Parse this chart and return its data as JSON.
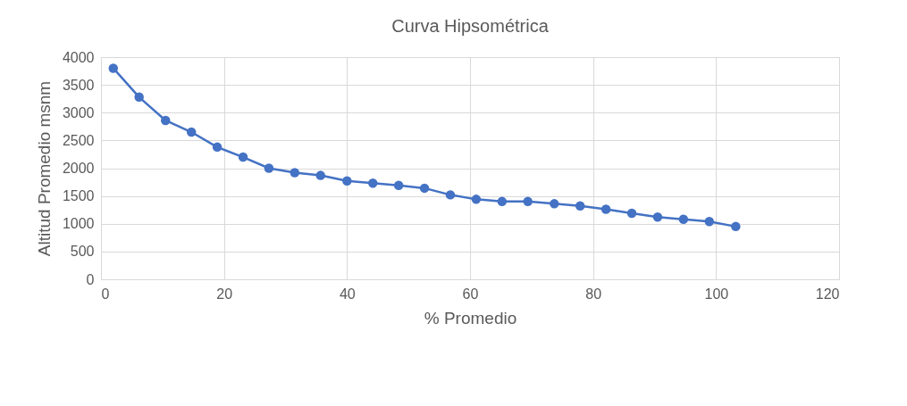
{
  "chart_data": {
    "type": "line",
    "title": "Curva Hipsométrica",
    "xlabel": "% Promedio",
    "ylabel": "Altitud Promedio  msnm",
    "x": [
      2.0,
      6.2,
      10.5,
      14.7,
      18.9,
      23.1,
      27.3,
      31.5,
      35.7,
      40.0,
      44.2,
      48.4,
      52.6,
      56.8,
      61.0,
      65.2,
      69.4,
      73.7,
      77.9,
      82.1,
      86.3,
      90.5,
      94.7,
      98.9,
      103.2
    ],
    "series": [
      {
        "color": "#4472c4",
        "values": [
          3800,
          3280,
          2860,
          2650,
          2380,
          2200,
          2000,
          1920,
          1870,
          1770,
          1730,
          1690,
          1640,
          1520,
          1440,
          1400,
          1400,
          1360,
          1320,
          1260,
          1190,
          1120,
          1080,
          1040,
          950
        ]
      }
    ],
    "xlim": [
      0,
      120
    ],
    "xticks": [
      0,
      20,
      40,
      60,
      80,
      100,
      120
    ],
    "ylim": [
      0,
      4000
    ],
    "yticks": [
      0,
      500,
      1000,
      1500,
      2000,
      2500,
      3000,
      3500,
      4000
    ],
    "grid": true,
    "marker": "circle",
    "line_style": "solid"
  }
}
